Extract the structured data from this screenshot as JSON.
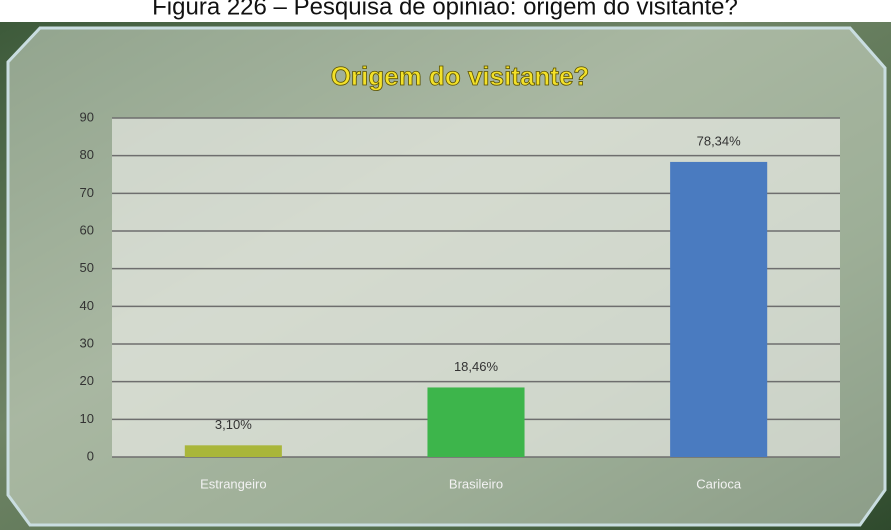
{
  "caption": "Figura 226 – Pesquisa de opinião: origem do visitante?",
  "chart_data": {
    "type": "bar",
    "title": "Origem do visitante?",
    "categories": [
      "Estrangeiro",
      "Brasileiro",
      "Carioca"
    ],
    "values": [
      3.1,
      18.46,
      78.34
    ],
    "value_labels": [
      "3,10%",
      "18,46%",
      "78,34%"
    ],
    "colors": [
      "#a9b63a",
      "#3db54b",
      "#4a7bc0"
    ],
    "ylim": [
      0,
      90
    ],
    "yticks": [
      0,
      10,
      20,
      30,
      40,
      50,
      60,
      70,
      80,
      90
    ],
    "grid": true
  }
}
